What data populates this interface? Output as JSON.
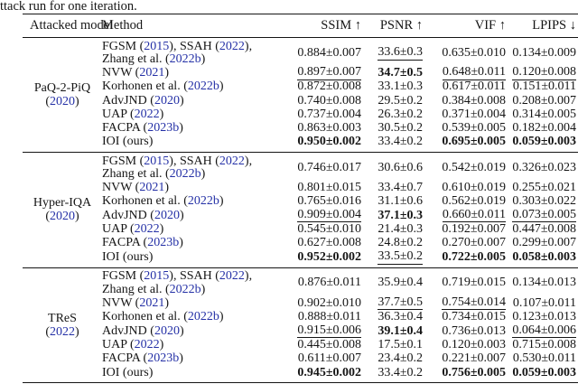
{
  "colors": {
    "citation": "#2430a6",
    "text": "#151515",
    "rule": "#151515"
  },
  "page": {
    "caption": "ttack run for one iteration."
  },
  "table": {
    "headers": [
      "Attacked model",
      "Method",
      "SSIM ↑",
      "PSNR ↑",
      "VIF ↑",
      "LPIPS ↓"
    ],
    "groups": [
      {
        "model": {
          "name": "PaQ-2-PiQ",
          "year_segments": [
            {
              "t": "("
            },
            {
              "t": "2020",
              "cite": true
            },
            {
              "t": ")"
            }
          ]
        },
        "rows": [
          {
            "method": [
              [
                {
                  "t": "FGSM ("
                },
                {
                  "t": "2015",
                  "cite": true
                },
                {
                  "t": "), SSAH ("
                },
                {
                  "t": "2022",
                  "cite": true
                },
                {
                  "t": "),"
                }
              ],
              [
                {
                  "t": "Zhang et al. ("
                },
                {
                  "t": "2022b",
                  "cite": true
                },
                {
                  "t": ")"
                }
              ]
            ],
            "values": [
              {
                "v": "0.884±0.007",
                "s": "p"
              },
              {
                "v": "33.6±0.3",
                "s": "u"
              },
              {
                "v": "0.635±0.010",
                "s": "p"
              },
              {
                "v": "0.134±0.009",
                "s": "p"
              }
            ]
          },
          {
            "method": [
              [
                {
                  "t": "NVW ("
                },
                {
                  "t": "2021",
                  "cite": true
                },
                {
                  "t": ")"
                }
              ]
            ],
            "values": [
              {
                "v": "0.897±0.007",
                "s": "u"
              },
              {
                "v": "34.7±0.5",
                "s": "b"
              },
              {
                "v": "0.648±0.011",
                "s": "u"
              },
              {
                "v": "0.120±0.008",
                "s": "u"
              }
            ]
          },
          {
            "method": [
              [
                {
                  "t": "Korhonen et al. ("
                },
                {
                  "t": "2022b",
                  "cite": true
                },
                {
                  "t": ")"
                }
              ]
            ],
            "values": [
              {
                "v": "0.872±0.008",
                "s": "p"
              },
              {
                "v": "33.1±0.3",
                "s": "p"
              },
              {
                "v": "0.617±0.011",
                "s": "p"
              },
              {
                "v": "0.151±0.011",
                "s": "p"
              }
            ]
          },
          {
            "method": [
              [
                {
                  "t": "AdvJND ("
                },
                {
                  "t": "2020",
                  "cite": true
                },
                {
                  "t": ")"
                }
              ]
            ],
            "values": [
              {
                "v": "0.740±0.008",
                "s": "p"
              },
              {
                "v": "29.5±0.2",
                "s": "p"
              },
              {
                "v": "0.384±0.008",
                "s": "p"
              },
              {
                "v": "0.208±0.007",
                "s": "p"
              }
            ]
          },
          {
            "method": [
              [
                {
                  "t": "UAP ("
                },
                {
                  "t": "2022",
                  "cite": true
                },
                {
                  "t": ")"
                }
              ]
            ],
            "values": [
              {
                "v": "0.737±0.004",
                "s": "p"
              },
              {
                "v": "26.3±0.2",
                "s": "p"
              },
              {
                "v": "0.371±0.004",
                "s": "p"
              },
              {
                "v": "0.314±0.005",
                "s": "p"
              }
            ]
          },
          {
            "method": [
              [
                {
                  "t": "FACPA ("
                },
                {
                  "t": "2023b",
                  "cite": true
                },
                {
                  "t": ")"
                }
              ]
            ],
            "values": [
              {
                "v": "0.863±0.003",
                "s": "p"
              },
              {
                "v": "30.5±0.2",
                "s": "p"
              },
              {
                "v": "0.539±0.005",
                "s": "p"
              },
              {
                "v": "0.182±0.004",
                "s": "p"
              }
            ]
          },
          {
            "method": [
              [
                {
                  "t": "IOI (ours)"
                }
              ]
            ],
            "values": [
              {
                "v": "0.950±0.002",
                "s": "b"
              },
              {
                "v": "33.4±0.2",
                "s": "p"
              },
              {
                "v": "0.695±0.005",
                "s": "b"
              },
              {
                "v": "0.059±0.003",
                "s": "b"
              }
            ]
          }
        ]
      },
      {
        "model": {
          "name": "Hyper-IQA",
          "year_segments": [
            {
              "t": "("
            },
            {
              "t": "2020",
              "cite": true
            },
            {
              "t": ")"
            }
          ]
        },
        "rows": [
          {
            "method": [
              [
                {
                  "t": "FGSM ("
                },
                {
                  "t": "2015",
                  "cite": true
                },
                {
                  "t": "), SSAH ("
                },
                {
                  "t": "2022",
                  "cite": true
                },
                {
                  "t": "),"
                }
              ],
              [
                {
                  "t": "Zhang et al. ("
                },
                {
                  "t": "2022b",
                  "cite": true
                },
                {
                  "t": ")"
                }
              ]
            ],
            "values": [
              {
                "v": "0.746±0.017",
                "s": "p"
              },
              {
                "v": "30.6±0.6",
                "s": "p"
              },
              {
                "v": "0.542±0.019",
                "s": "p"
              },
              {
                "v": "0.326±0.023",
                "s": "p"
              }
            ]
          },
          {
            "method": [
              [
                {
                  "t": "NVW ("
                },
                {
                  "t": "2021",
                  "cite": true
                },
                {
                  "t": ")"
                }
              ]
            ],
            "values": [
              {
                "v": "0.801±0.015",
                "s": "p"
              },
              {
                "v": "33.4±0.7",
                "s": "p"
              },
              {
                "v": "0.610±0.019",
                "s": "p"
              },
              {
                "v": "0.255±0.021",
                "s": "p"
              }
            ]
          },
          {
            "method": [
              [
                {
                  "t": "Korhonen et al. ("
                },
                {
                  "t": "2022b",
                  "cite": true
                },
                {
                  "t": ")"
                }
              ]
            ],
            "values": [
              {
                "v": "0.765±0.016",
                "s": "p"
              },
              {
                "v": "31.1±0.6",
                "s": "p"
              },
              {
                "v": "0.562±0.019",
                "s": "p"
              },
              {
                "v": "0.303±0.022",
                "s": "p"
              }
            ]
          },
          {
            "method": [
              [
                {
                  "t": "AdvJND ("
                },
                {
                  "t": "2020",
                  "cite": true
                },
                {
                  "t": ")"
                }
              ]
            ],
            "values": [
              {
                "v": "0.909±0.004",
                "s": "u"
              },
              {
                "v": "37.1±0.3",
                "s": "b"
              },
              {
                "v": "0.660±0.011",
                "s": "u"
              },
              {
                "v": "0.073±0.005",
                "s": "u"
              }
            ]
          },
          {
            "method": [
              [
                {
                  "t": "UAP ("
                },
                {
                  "t": "2022",
                  "cite": true
                },
                {
                  "t": ")"
                }
              ]
            ],
            "values": [
              {
                "v": "0.545±0.010",
                "s": "p"
              },
              {
                "v": "21.4±0.3",
                "s": "p"
              },
              {
                "v": "0.192±0.007",
                "s": "p"
              },
              {
                "v": "0.447±0.008",
                "s": "p"
              }
            ]
          },
          {
            "method": [
              [
                {
                  "t": "FACPA ("
                },
                {
                  "t": "2023b",
                  "cite": true
                },
                {
                  "t": ")"
                }
              ]
            ],
            "values": [
              {
                "v": "0.627±0.008",
                "s": "p"
              },
              {
                "v": "24.8±0.2",
                "s": "p"
              },
              {
                "v": "0.270±0.007",
                "s": "p"
              },
              {
                "v": "0.299±0.007",
                "s": "p"
              }
            ]
          },
          {
            "method": [
              [
                {
                  "t": "IOI (ours)"
                }
              ]
            ],
            "values": [
              {
                "v": "0.952±0.002",
                "s": "b"
              },
              {
                "v": "33.5±0.2",
                "s": "u"
              },
              {
                "v": "0.722±0.005",
                "s": "b"
              },
              {
                "v": "0.058±0.003",
                "s": "b"
              }
            ]
          }
        ]
      },
      {
        "model": {
          "name": "TReS",
          "year_segments": [
            {
              "t": "("
            },
            {
              "t": "2022",
              "cite": true
            },
            {
              "t": ")"
            }
          ]
        },
        "rows": [
          {
            "method": [
              [
                {
                  "t": "FGSM ("
                },
                {
                  "t": "2015",
                  "cite": true
                },
                {
                  "t": "), SSAH ("
                },
                {
                  "t": "2022",
                  "cite": true
                },
                {
                  "t": "),"
                }
              ],
              [
                {
                  "t": "Zhang et al. ("
                },
                {
                  "t": "2022b",
                  "cite": true
                },
                {
                  "t": ")"
                }
              ]
            ],
            "values": [
              {
                "v": "0.876±0.011",
                "s": "p"
              },
              {
                "v": "35.9±0.4",
                "s": "p"
              },
              {
                "v": "0.719±0.015",
                "s": "p"
              },
              {
                "v": "0.134±0.013",
                "s": "p"
              }
            ]
          },
          {
            "method": [
              [
                {
                  "t": "NVW ("
                },
                {
                  "t": "2021",
                  "cite": true
                },
                {
                  "t": ")"
                }
              ]
            ],
            "values": [
              {
                "v": "0.902±0.010",
                "s": "p"
              },
              {
                "v": "37.7±0.5",
                "s": "u"
              },
              {
                "v": "0.754±0.014",
                "s": "u"
              },
              {
                "v": "0.107±0.011",
                "s": "p"
              }
            ]
          },
          {
            "method": [
              [
                {
                  "t": "Korhonen et al. ("
                },
                {
                  "t": "2022b",
                  "cite": true
                },
                {
                  "t": ")"
                }
              ]
            ],
            "values": [
              {
                "v": "0.888±0.011",
                "s": "p"
              },
              {
                "v": "36.3±0.4",
                "s": "p"
              },
              {
                "v": "0.734±0.015",
                "s": "p"
              },
              {
                "v": "0.123±0.013",
                "s": "p"
              }
            ]
          },
          {
            "method": [
              [
                {
                  "t": "AdvJND ("
                },
                {
                  "t": "2020",
                  "cite": true
                },
                {
                  "t": ")"
                }
              ]
            ],
            "values": [
              {
                "v": "0.915±0.006",
                "s": "u"
              },
              {
                "v": "39.1±0.4",
                "s": "b"
              },
              {
                "v": "0.736±0.013",
                "s": "p"
              },
              {
                "v": "0.064±0.006",
                "s": "u"
              }
            ]
          },
          {
            "method": [
              [
                {
                  "t": "UAP ("
                },
                {
                  "t": "2022",
                  "cite": true
                },
                {
                  "t": ")"
                }
              ]
            ],
            "values": [
              {
                "v": "0.445±0.008",
                "s": "p"
              },
              {
                "v": "17.5±0.1",
                "s": "p"
              },
              {
                "v": "0.120±0.003",
                "s": "p"
              },
              {
                "v": "0.715±0.008",
                "s": "p"
              }
            ]
          },
          {
            "method": [
              [
                {
                  "t": "FACPA ("
                },
                {
                  "t": "2023b",
                  "cite": true
                },
                {
                  "t": ")"
                }
              ]
            ],
            "values": [
              {
                "v": "0.611±0.007",
                "s": "p"
              },
              {
                "v": "23.4±0.2",
                "s": "p"
              },
              {
                "v": "0.221±0.007",
                "s": "p"
              },
              {
                "v": "0.530±0.011",
                "s": "p"
              }
            ]
          },
          {
            "method": [
              [
                {
                  "t": "IOI (ours)"
                }
              ]
            ],
            "values": [
              {
                "v": "0.945±0.002",
                "s": "b"
              },
              {
                "v": "33.4±0.2",
                "s": "p"
              },
              {
                "v": "0.756±0.005",
                "s": "b"
              },
              {
                "v": "0.059±0.003",
                "s": "b"
              }
            ]
          }
        ]
      }
    ]
  }
}
